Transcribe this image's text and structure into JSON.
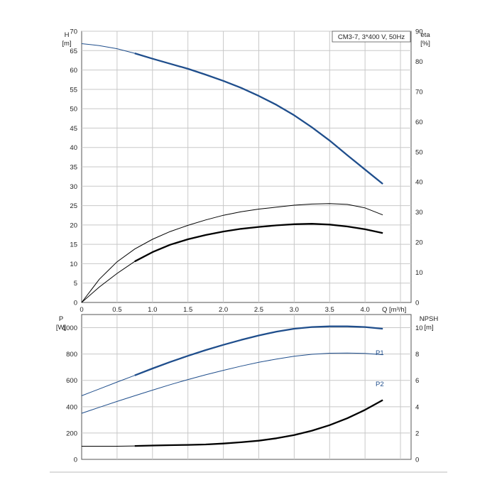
{
  "chart_data": [
    {
      "type": "line",
      "panel": "head_efficiency",
      "legend_box": "CM3-7, 3*400 V, 50Hz",
      "left_axis": {
        "label": "H",
        "unit": "[m]",
        "ticks": [
          0,
          5,
          10,
          15,
          20,
          25,
          30,
          35,
          40,
          45,
          50,
          55,
          60,
          65,
          70
        ],
        "lim": [
          0,
          70
        ]
      },
      "right_axis": {
        "label": "eta",
        "unit": "[%]",
        "ticks": [
          0,
          10,
          20,
          30,
          40,
          50,
          60,
          70,
          80,
          90
        ],
        "lim": [
          0,
          90
        ]
      },
      "x_axis": {
        "label": "Q [m³/h]",
        "ticks": [
          "0",
          "0.5",
          "1.0",
          "1.5",
          "2.0",
          "2.5",
          "3.0",
          "3.5",
          "4.0"
        ],
        "lim": [
          0,
          4.65
        ]
      },
      "grid": true,
      "series": [
        {
          "axis": "left",
          "color": "#1f4e8c",
          "x": [
            0,
            0.25,
            0.5,
            0.75,
            1.0,
            1.25,
            1.5,
            1.75,
            2.0,
            2.25,
            2.5,
            2.75,
            3.0,
            3.25,
            3.5,
            3.75,
            4.0,
            4.25
          ],
          "values": [
            66.8,
            66.3,
            65.5,
            64.3,
            62.9,
            61.6,
            60.3,
            58.8,
            57.2,
            55.4,
            53.3,
            51.0,
            48.3,
            45.2,
            41.8,
            38.0,
            34.3,
            30.6
          ],
          "bold_from": 0.75
        },
        {
          "axis": "left",
          "color": "#000000",
          "x": [
            0,
            0.25,
            0.5,
            0.75,
            1.0,
            1.25,
            1.5,
            1.75,
            2.0,
            2.25,
            2.5,
            2.75,
            3.0,
            3.25,
            3.5,
            3.75,
            4.0,
            4.25
          ],
          "values": [
            0,
            4.0,
            7.5,
            10.6,
            13.0,
            14.9,
            16.3,
            17.4,
            18.3,
            19.0,
            19.5,
            19.9,
            20.2,
            20.3,
            20.1,
            19.6,
            18.9,
            17.9
          ],
          "bold_from": 0.75
        },
        {
          "axis": "left",
          "color": "#000000",
          "x": [
            0,
            0.25,
            0.5,
            0.75,
            1.0,
            1.25,
            1.5,
            1.75,
            2.0,
            2.25,
            2.5,
            2.75,
            3.0,
            3.25,
            3.5,
            3.75,
            4.0,
            4.25
          ],
          "values": [
            0,
            6.0,
            10.5,
            13.8,
            16.3,
            18.3,
            19.9,
            21.3,
            22.5,
            23.4,
            24.1,
            24.6,
            25.1,
            25.4,
            25.5,
            25.3,
            24.4,
            22.6
          ],
          "bold_from": null
        }
      ]
    },
    {
      "type": "line",
      "panel": "power_npsh",
      "left_axis": {
        "label": "P",
        "unit": "[W]",
        "ticks": [
          0,
          200,
          400,
          600,
          800,
          1000
        ],
        "lim": [
          0,
          1100
        ]
      },
      "right_axis": {
        "label": "NPSH",
        "unit": "[m]",
        "ticks": [
          0,
          2,
          4,
          6,
          8,
          10
        ],
        "lim": [
          0,
          11
        ]
      },
      "x_axis": {
        "lim": [
          0,
          4.65
        ]
      },
      "grid": true,
      "series": [
        {
          "name": "P1",
          "axis": "left",
          "color": "#1f4e8c",
          "x": [
            0,
            0.25,
            0.5,
            0.75,
            1.0,
            1.25,
            1.5,
            1.75,
            2.0,
            2.25,
            2.5,
            2.75,
            3.0,
            3.25,
            3.5,
            3.75,
            4.0,
            4.25
          ],
          "values": [
            483,
            535,
            587,
            638,
            690,
            740,
            786,
            830,
            870,
            907,
            941,
            970,
            992,
            1005,
            1010,
            1010,
            1005,
            992
          ],
          "bold_from": 0.75
        },
        {
          "name": "P2",
          "axis": "left",
          "color": "#1f4e8c",
          "x": [
            0,
            0.25,
            0.5,
            0.75,
            1.0,
            1.25,
            1.5,
            1.75,
            2.0,
            2.25,
            2.5,
            2.75,
            3.0,
            3.25,
            3.5,
            3.75,
            4.0,
            4.25
          ],
          "values": [
            350,
            395,
            440,
            483,
            526,
            567,
            606,
            642,
            676,
            708,
            737,
            762,
            783,
            798,
            806,
            808,
            805,
            795
          ],
          "bold_from": null
        },
        {
          "axis": "right",
          "color": "#000000",
          "x": [
            0,
            0.25,
            0.5,
            0.75,
            1.0,
            1.25,
            1.5,
            1.75,
            2.0,
            2.25,
            2.5,
            2.75,
            3.0,
            3.25,
            3.5,
            3.75,
            4.0,
            4.25
          ],
          "values": [
            1.0,
            1.0,
            1.0,
            1.02,
            1.05,
            1.08,
            1.1,
            1.13,
            1.2,
            1.3,
            1.42,
            1.6,
            1.85,
            2.18,
            2.6,
            3.12,
            3.76,
            4.5
          ],
          "bold_from": 0.75
        }
      ]
    }
  ]
}
